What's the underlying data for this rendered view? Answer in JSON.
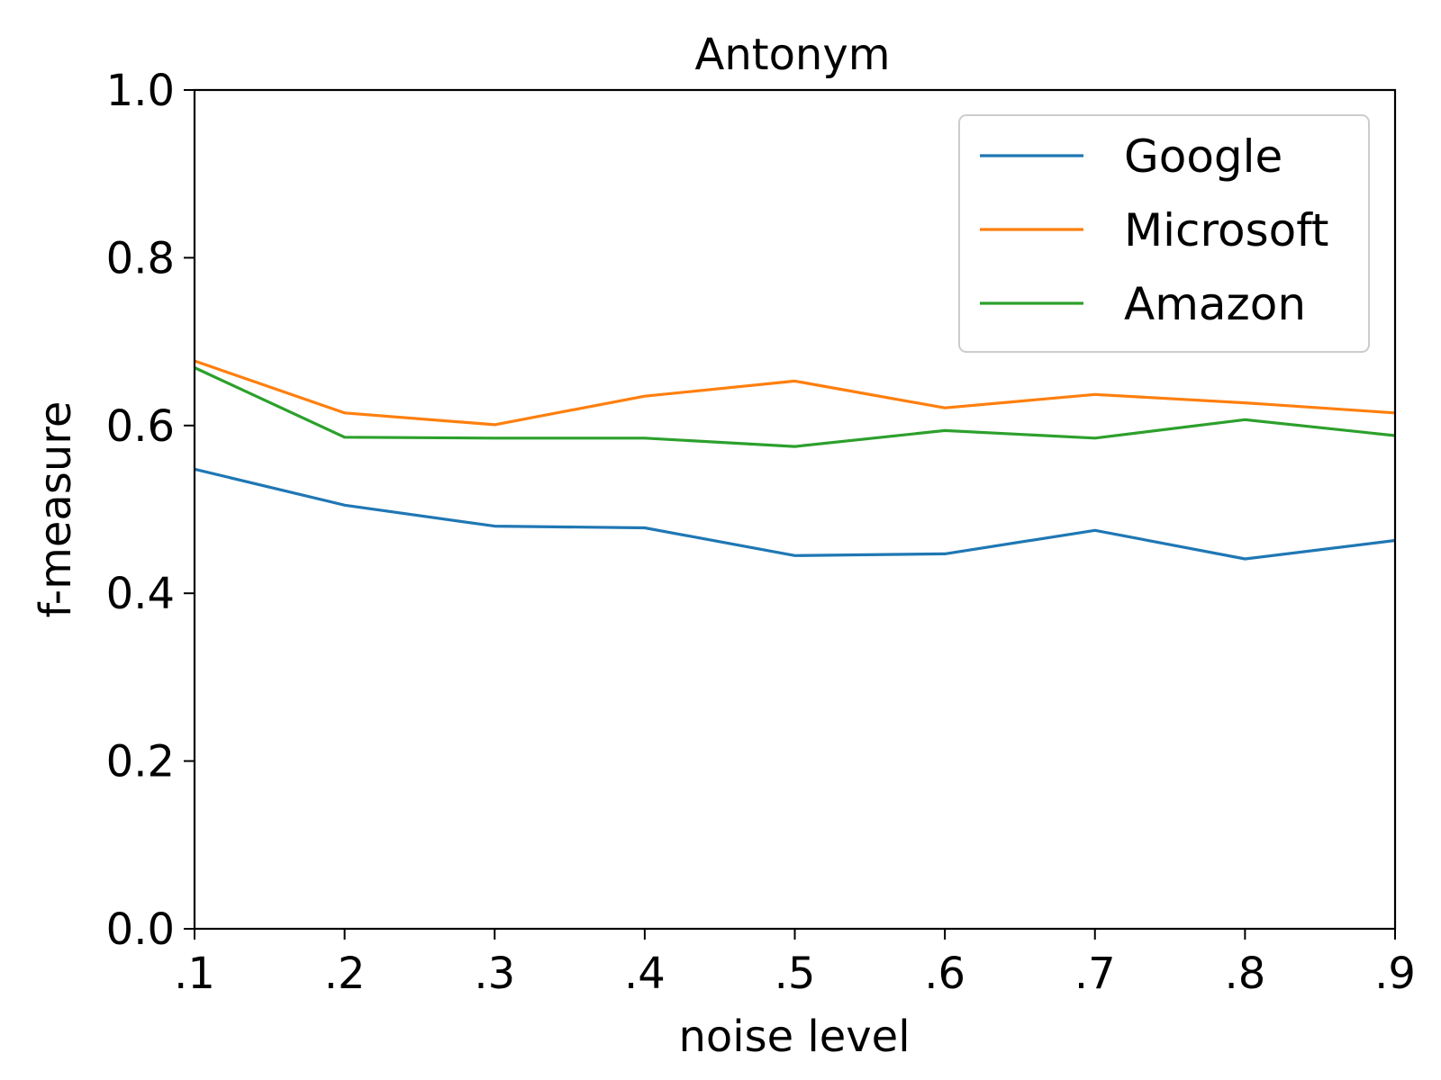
{
  "chart_data": {
    "type": "line",
    "title": "Antonym",
    "xlabel": "noise level",
    "ylabel": "f-measure",
    "x": [
      0.1,
      0.2,
      0.3,
      0.4,
      0.5,
      0.6,
      0.7,
      0.8,
      0.9
    ],
    "x_tick_labels": [
      ".1",
      ".2",
      ".3",
      ".4",
      ".5",
      ".6",
      ".7",
      ".8",
      ".9"
    ],
    "y_tick_labels": [
      "0.0",
      "0.2",
      "0.4",
      "0.6",
      "0.8",
      "1.0"
    ],
    "y_ticks": [
      0.0,
      0.2,
      0.4,
      0.6,
      0.8,
      1.0
    ],
    "xlim": [
      0.1,
      0.9
    ],
    "ylim": [
      0.0,
      1.0
    ],
    "grid": false,
    "legend_position": "top-right",
    "series": [
      {
        "name": "Google",
        "color": "#1f77b4",
        "values": [
          0.548,
          0.505,
          0.48,
          0.478,
          0.445,
          0.447,
          0.475,
          0.441,
          0.463
        ]
      },
      {
        "name": "Microsoft",
        "color": "#ff7f0e",
        "values": [
          0.677,
          0.615,
          0.601,
          0.635,
          0.653,
          0.621,
          0.637,
          0.627,
          0.615
        ]
      },
      {
        "name": "Amazon",
        "color": "#2ca02c",
        "values": [
          0.669,
          0.586,
          0.585,
          0.585,
          0.575,
          0.594,
          0.585,
          0.607,
          0.588
        ]
      }
    ]
  }
}
